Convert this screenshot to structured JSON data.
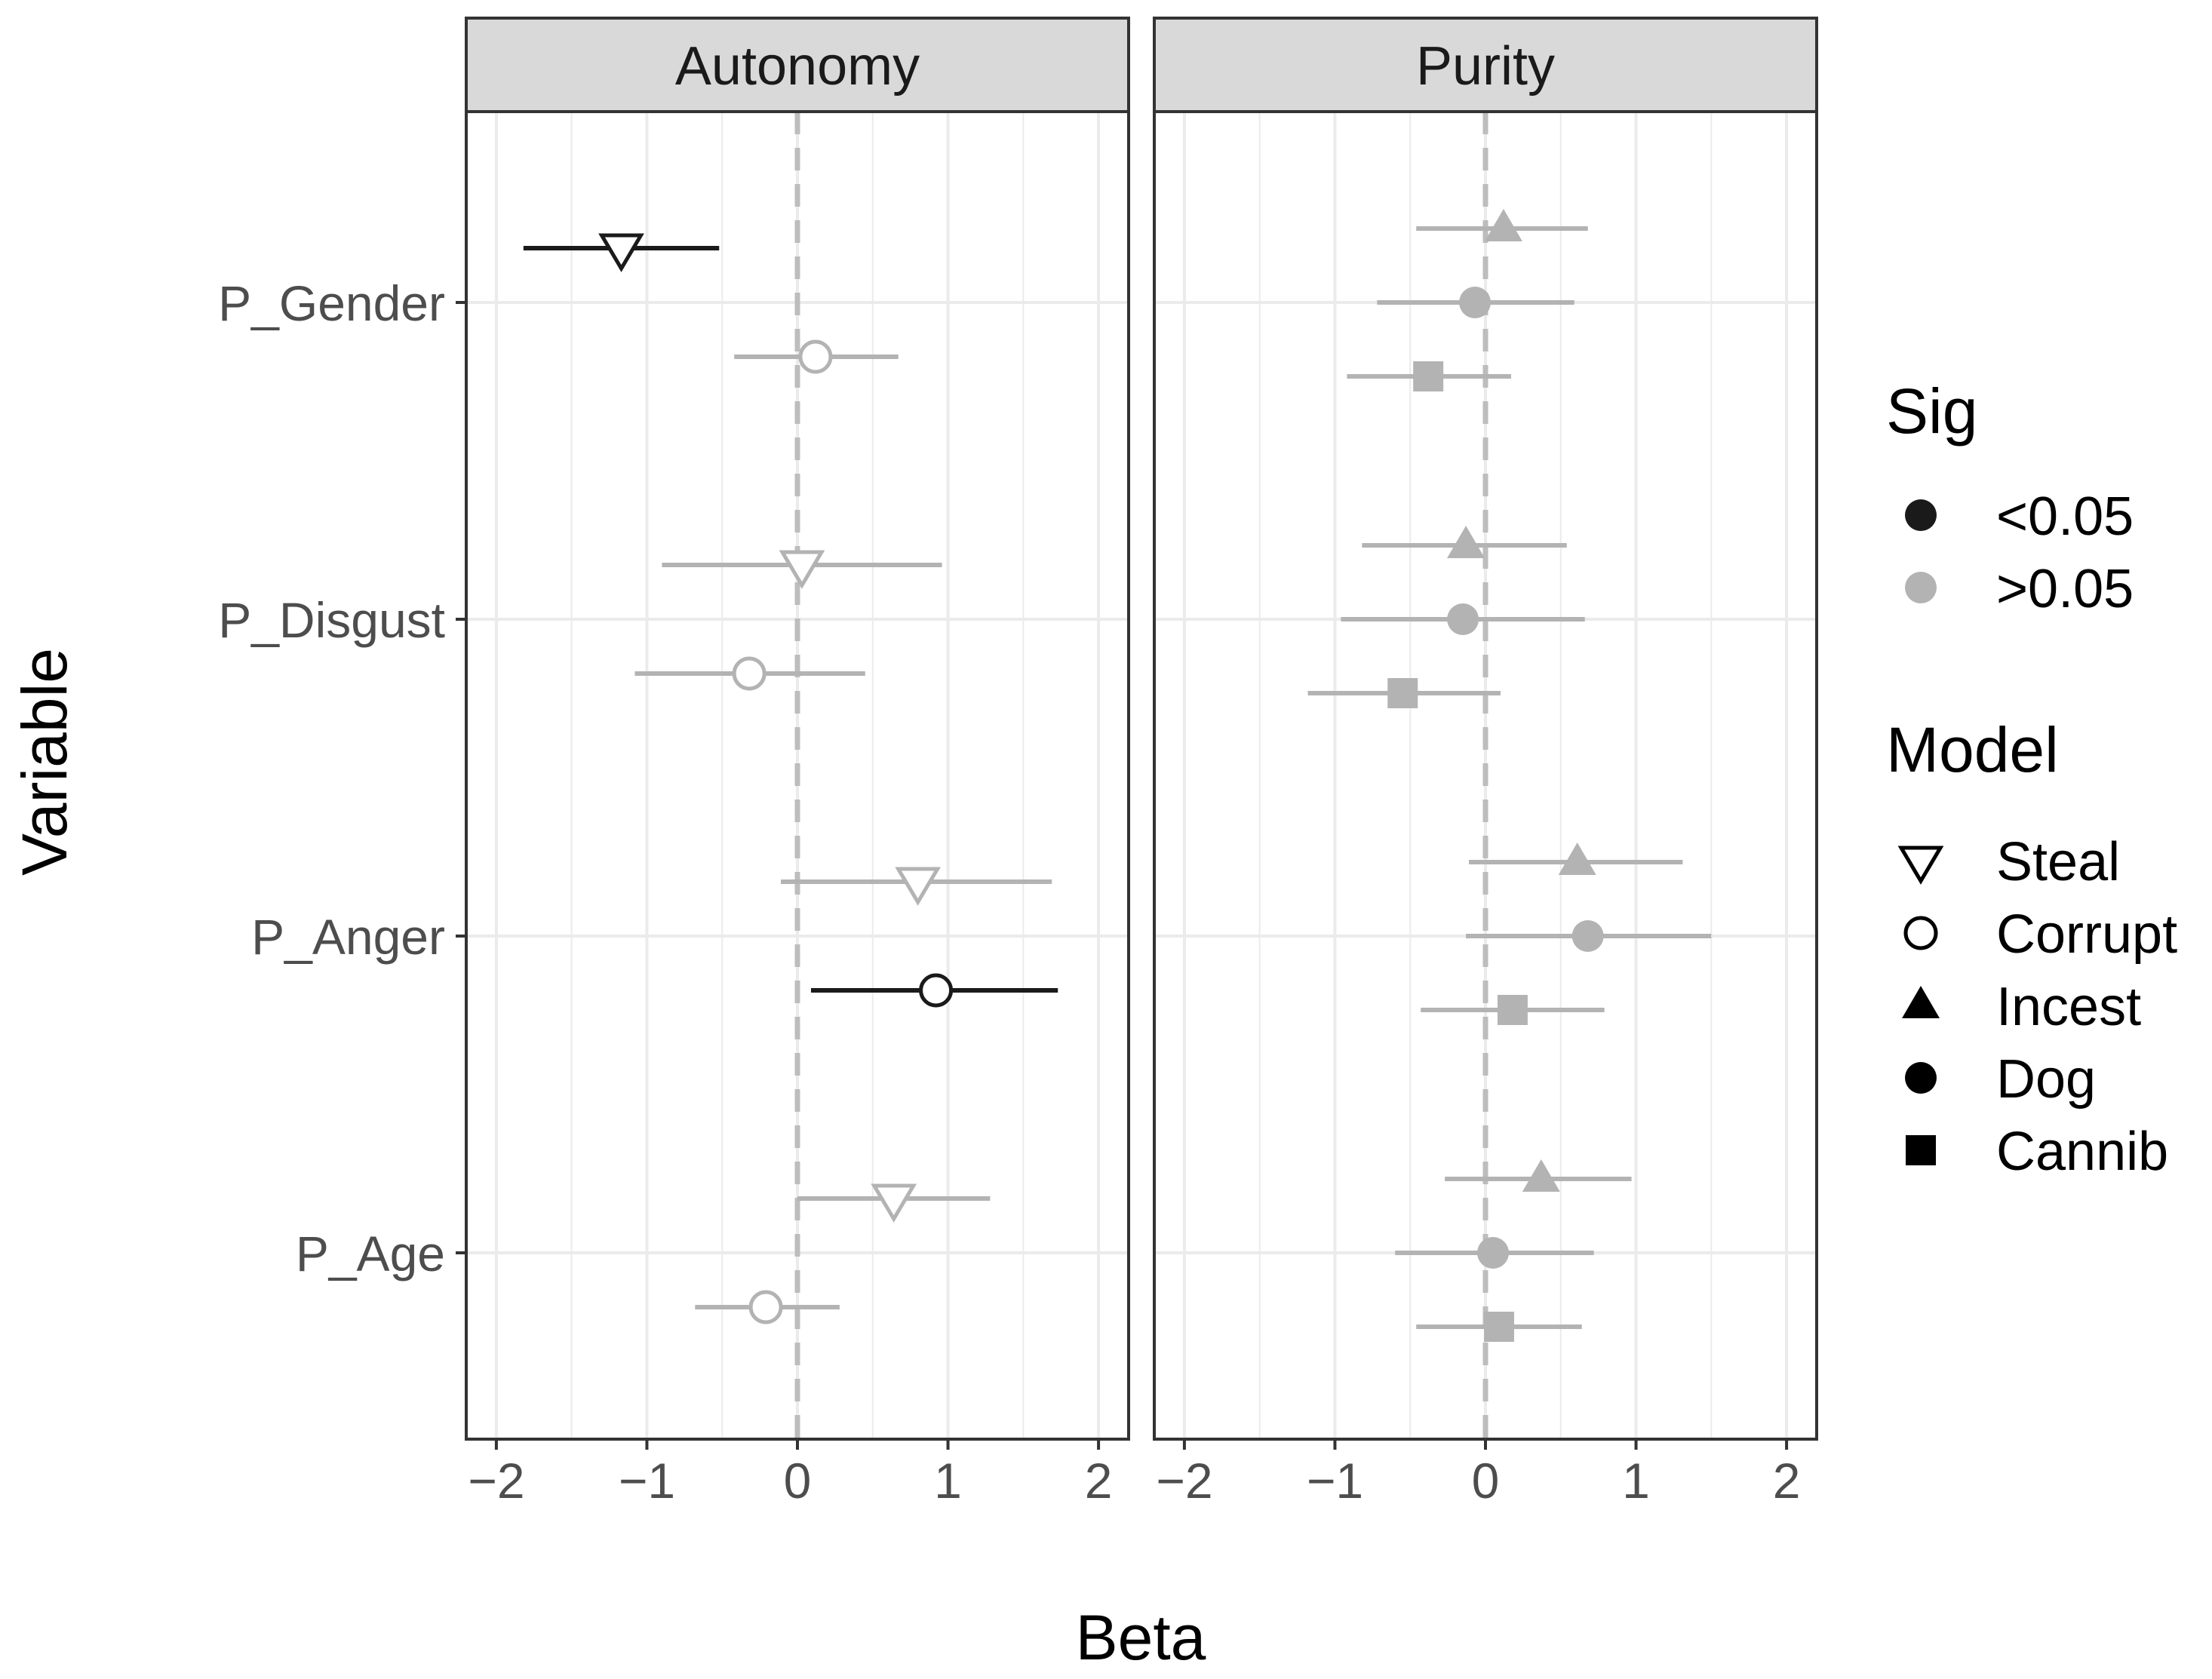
{
  "chart_data": {
    "type": "scatter",
    "subtype": "faceted coefficient plot with error bars",
    "xlabel": "Beta",
    "ylabel": "Variable",
    "xlim": [
      -2.2,
      2.2
    ],
    "x_ticks": [
      -2,
      -1,
      0,
      1,
      2
    ],
    "x_tick_labels": [
      "−2",
      "−1",
      "0",
      "1",
      "2"
    ],
    "reference_line": 0,
    "categories": [
      "P_Gender",
      "P_Disgust",
      "P_Anger",
      "P_Age"
    ],
    "colors": {
      "sig": "#1a1a1a",
      "nonsig": "#b3b3b3",
      "grid": "#ebebeb",
      "strip": "#d9d9d9",
      "dashed": "#bdbdbd"
    },
    "panels": [
      {
        "name": "Autonomy",
        "series": [
          {
            "name": "Steal",
            "shape": "triangle-down-open",
            "points": [
              {
                "variable": "P_Gender",
                "estimate": -1.17,
                "lower": -1.82,
                "upper": -0.52,
                "sig": "<0.05"
              },
              {
                "variable": "P_Disgust",
                "estimate": 0.03,
                "lower": -0.9,
                "upper": 0.96,
                "sig": ">0.05"
              },
              {
                "variable": "P_Anger",
                "estimate": 0.8,
                "lower": -0.11,
                "upper": 1.69,
                "sig": ">0.05"
              },
              {
                "variable": "P_Age",
                "estimate": 0.64,
                "lower": 0.0,
                "upper": 1.28,
                "sig": ">0.05"
              }
            ]
          },
          {
            "name": "Corrupt",
            "shape": "circle-open",
            "points": [
              {
                "variable": "P_Gender",
                "estimate": 0.12,
                "lower": -0.42,
                "upper": 0.67,
                "sig": ">0.05"
              },
              {
                "variable": "P_Disgust",
                "estimate": -0.32,
                "lower": -1.08,
                "upper": 0.45,
                "sig": ">0.05"
              },
              {
                "variable": "P_Anger",
                "estimate": 0.92,
                "lower": 0.09,
                "upper": 1.73,
                "sig": "<0.05"
              },
              {
                "variable": "P_Age",
                "estimate": -0.21,
                "lower": -0.68,
                "upper": 0.28,
                "sig": ">0.05"
              }
            ]
          }
        ]
      },
      {
        "name": "Purity",
        "series": [
          {
            "name": "Incest",
            "shape": "triangle-up",
            "points": [
              {
                "variable": "P_Gender",
                "estimate": 0.12,
                "lower": -0.46,
                "upper": 0.68,
                "sig": ">0.05"
              },
              {
                "variable": "P_Disgust",
                "estimate": -0.13,
                "lower": -0.82,
                "upper": 0.54,
                "sig": ">0.05"
              },
              {
                "variable": "P_Anger",
                "estimate": 0.61,
                "lower": -0.11,
                "upper": 1.31,
                "sig": ">0.05"
              },
              {
                "variable": "P_Age",
                "estimate": 0.37,
                "lower": -0.27,
                "upper": 0.97,
                "sig": ">0.05"
              }
            ]
          },
          {
            "name": "Dog",
            "shape": "circle",
            "points": [
              {
                "variable": "P_Gender",
                "estimate": -0.07,
                "lower": -0.72,
                "upper": 0.59,
                "sig": ">0.05"
              },
              {
                "variable": "P_Disgust",
                "estimate": -0.15,
                "lower": -0.96,
                "upper": 0.66,
                "sig": ">0.05"
              },
              {
                "variable": "P_Anger",
                "estimate": 0.68,
                "lower": -0.13,
                "upper": 1.5,
                "sig": ">0.05"
              },
              {
                "variable": "P_Age",
                "estimate": 0.05,
                "lower": -0.6,
                "upper": 0.72,
                "sig": ">0.05"
              }
            ]
          },
          {
            "name": "Cannib",
            "shape": "square",
            "points": [
              {
                "variable": "P_Gender",
                "estimate": -0.38,
                "lower": -0.92,
                "upper": 0.17,
                "sig": ">0.05"
              },
              {
                "variable": "P_Disgust",
                "estimate": -0.55,
                "lower": -1.18,
                "upper": 0.1,
                "sig": ">0.05"
              },
              {
                "variable": "P_Anger",
                "estimate": 0.18,
                "lower": -0.43,
                "upper": 0.79,
                "sig": ">0.05"
              },
              {
                "variable": "P_Age",
                "estimate": 0.09,
                "lower": -0.46,
                "upper": 0.64,
                "sig": ">0.05"
              }
            ]
          }
        ]
      }
    ],
    "legend": {
      "sig": {
        "title": "Sig",
        "items": [
          {
            "label": "<0.05",
            "color": "#1a1a1a"
          },
          {
            "label": ">0.05",
            "color": "#b3b3b3"
          }
        ]
      },
      "model": {
        "title": "Model",
        "items": [
          {
            "label": "Steal",
            "shape": "triangle-down-open"
          },
          {
            "label": "Corrupt",
            "shape": "circle-open"
          },
          {
            "label": "Incest",
            "shape": "triangle-up"
          },
          {
            "label": "Dog",
            "shape": "circle"
          },
          {
            "label": "Cannib",
            "shape": "square"
          }
        ]
      }
    }
  }
}
